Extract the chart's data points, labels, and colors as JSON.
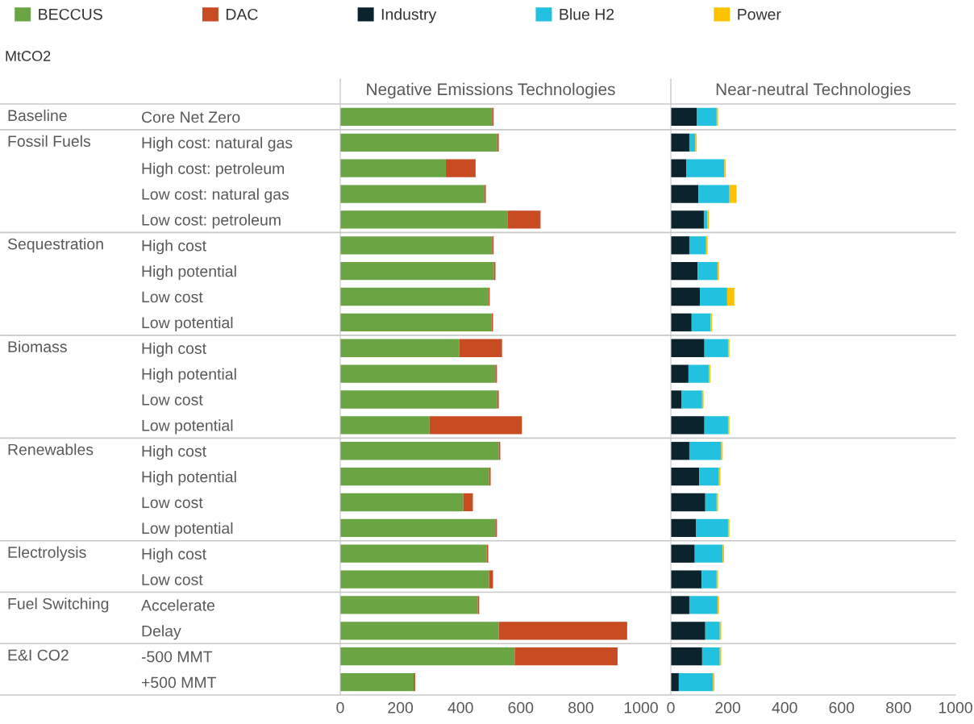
{
  "chart_data": [
    {
      "type": "bar",
      "title": "Negative Emissions Technologies",
      "orientation": "horizontal",
      "stacked": true,
      "legend": "top left",
      "categories": [
        "Core Net Zero",
        "High cost: natural gas",
        "High cost: petroleum",
        "Low cost: natural gas",
        "Low cost: petroleum",
        "High cost",
        "High potential",
        "Low cost",
        "Low potential",
        "High cost",
        "High potential",
        "Low cost",
        "Low potential",
        "High cost",
        "High potential",
        "Low cost",
        "Low potential",
        "High cost",
        "Low cost",
        "Accelerate",
        "Delay",
        "-500 MMT",
        "+500 MMT"
      ],
      "series": [
        {
          "name": "BECCUS",
          "color": "#6aa443",
          "values": [
            505,
            522,
            351,
            479,
            556,
            505,
            511,
            492,
            503,
            396,
            516,
            522,
            297,
            527,
            495,
            409,
            516,
            487,
            495,
            457,
            527,
            580,
            244
          ]
        },
        {
          "name": "DAC",
          "color": "#c84b21",
          "values": [
            5,
            5,
            99,
            5,
            110,
            5,
            5,
            5,
            5,
            142,
            5,
            5,
            307,
            5,
            5,
            32,
            5,
            5,
            13,
            5,
            427,
            342,
            5
          ]
        }
      ],
      "xlim": [
        0,
        1000
      ],
      "xticks": [
        0,
        200,
        400,
        600,
        800,
        1000
      ],
      "annotations": [
        "MtCO2",
        "Baseline",
        "Fossil Fuels",
        "Sequestration",
        "Biomass",
        "Renewables",
        "Electrolysis",
        "Fuel Switching",
        "E&I CO2"
      ]
    },
    {
      "type": "bar",
      "title": "Near-neutral Technologies",
      "orientation": "horizontal",
      "stacked": true,
      "legend": "top left",
      "categories": [
        null,
        null,
        null,
        null,
        null,
        null,
        null,
        null,
        null,
        null,
        null,
        null,
        null,
        null,
        null,
        null,
        null,
        null,
        null,
        null,
        null,
        null,
        null
      ],
      "series": [
        {
          "name": "Industry",
          "color": "#0a232c",
          "values": [
            92,
            65,
            54,
            97,
            116,
            65,
            94,
            102,
            73,
            118,
            62,
            38,
            118,
            65,
            100,
            121,
            89,
            84,
            108,
            65,
            121,
            110,
            28
          ]
        },
        {
          "name": "Blue H2",
          "color": "#22c1e0",
          "values": [
            69,
            21,
            134,
            109,
            13,
            59,
            70,
            96,
            67,
            83,
            72,
            72,
            83,
            112,
            69,
            40,
            112,
            98,
            53,
            99,
            51,
            62,
            120
          ]
        },
        {
          "name": "Power",
          "color": "#fcc200",
          "values": [
            5,
            5,
            5,
            25,
            5,
            5,
            5,
            25,
            5,
            5,
            5,
            5,
            5,
            5,
            5,
            5,
            5,
            5,
            5,
            5,
            5,
            5,
            5
          ]
        }
      ],
      "xlim": [
        0,
        1000
      ],
      "xticks": [
        0,
        200,
        400,
        600,
        800,
        1000
      ]
    }
  ]
}
